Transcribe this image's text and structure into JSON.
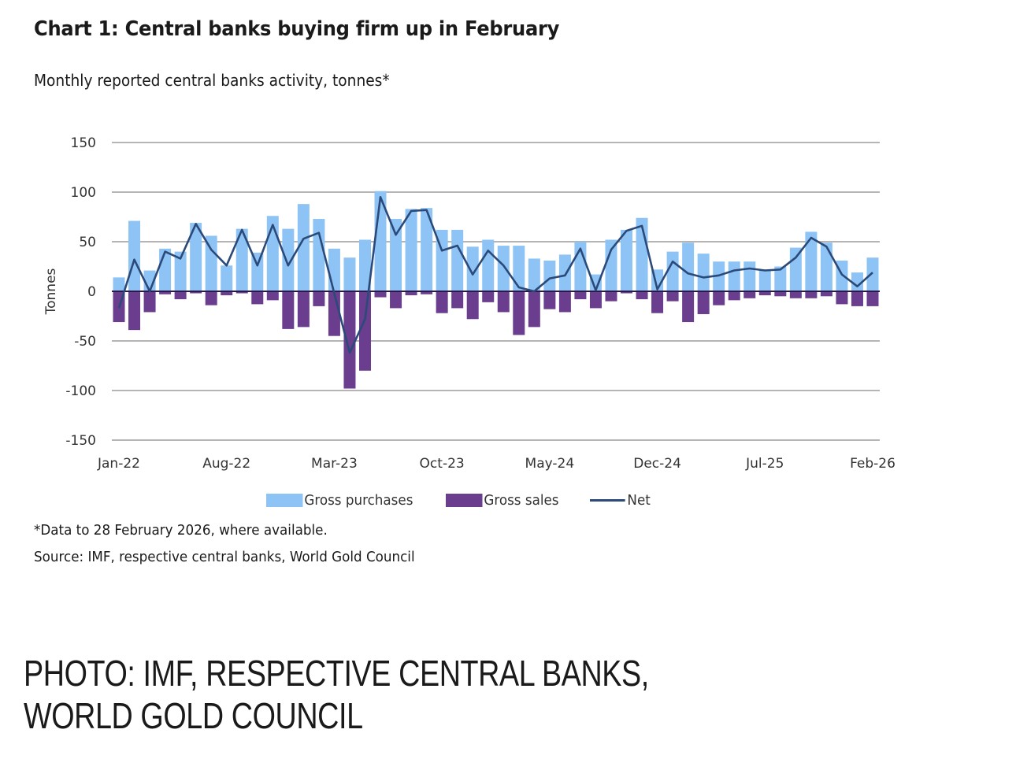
{
  "chart_data": {
    "type": "bar",
    "title": "Chart 1: Central banks buying firm up in February",
    "subtitle": "Monthly reported central banks activity, tonnes*",
    "ylabel": "Tonnes",
    "xlabel": "",
    "ylim": [
      -150,
      150
    ],
    "yticks": [
      "150",
      "100",
      "50",
      "0",
      "-50",
      "-100",
      "-150"
    ],
    "ytick_values": [
      150,
      100,
      50,
      0,
      -50,
      -100,
      -150
    ],
    "xtick_labels": [
      "Jan-22",
      "Aug-22",
      "Mar-23",
      "Oct-23",
      "May-24",
      "Dec-24",
      "Jul-25",
      "Feb-26"
    ],
    "xtick_indices": [
      0,
      7,
      14,
      21,
      28,
      35,
      42,
      49
    ],
    "grid": true,
    "legend_position": "bottom",
    "categories": [
      "Jan-22",
      "Feb-22",
      "Mar-22",
      "Apr-22",
      "May-22",
      "Jun-22",
      "Jul-22",
      "Aug-22",
      "Sep-22",
      "Oct-22",
      "Nov-22",
      "Dec-22",
      "Jan-23",
      "Feb-23",
      "Mar-23",
      "Apr-23",
      "May-23",
      "Jun-23",
      "Jul-23",
      "Aug-23",
      "Sep-23",
      "Oct-23",
      "Nov-23",
      "Dec-23",
      "Jan-24",
      "Feb-24",
      "Mar-24",
      "Apr-24",
      "May-24",
      "Jun-24",
      "Jul-24",
      "Aug-24",
      "Sep-24",
      "Oct-24",
      "Nov-24",
      "Dec-24",
      "Jan-25",
      "Feb-25",
      "Mar-25",
      "Apr-25",
      "May-25",
      "Jun-25",
      "Jul-25",
      "Aug-25",
      "Sep-25",
      "Oct-25",
      "Nov-25",
      "Dec-25",
      "Jan-26",
      "Feb-26"
    ],
    "series": [
      {
        "name": "Gross purchases",
        "kind": "bar",
        "color": "#8ec4f5",
        "values": [
          14,
          71,
          21,
          43,
          40,
          69,
          56,
          26,
          63,
          39,
          76,
          63,
          88,
          73,
          43,
          34,
          52,
          101,
          73,
          83,
          84,
          62,
          62,
          45,
          52,
          46,
          46,
          33,
          31,
          37,
          50,
          17,
          52,
          62,
          74,
          22,
          40,
          49,
          38,
          30,
          30,
          30,
          22,
          25,
          44,
          60,
          49,
          31,
          19,
          34
        ]
      },
      {
        "name": "Gross sales",
        "kind": "bar",
        "color": "#6a3d8f",
        "values": [
          -31,
          -39,
          -21,
          -3,
          -8,
          -2,
          -14,
          -4,
          -2,
          -13,
          -9,
          -38,
          -36,
          -15,
          -45,
          -98,
          -80,
          -6,
          -17,
          -4,
          -3,
          -22,
          -17,
          -28,
          -11,
          -21,
          -44,
          -36,
          -18,
          -21,
          -8,
          -17,
          -10,
          -2,
          -8,
          -22,
          -10,
          -31,
          -23,
          -14,
          -9,
          -7,
          -4,
          -5,
          -7,
          -7,
          -5,
          -13,
          -15,
          -15
        ]
      },
      {
        "name": "Net",
        "kind": "line",
        "color": "#2b4a7a",
        "values": [
          -17,
          32,
          0,
          40,
          33,
          68,
          42,
          26,
          62,
          26,
          67,
          26,
          53,
          59,
          -2,
          -62,
          -28,
          95,
          57,
          81,
          82,
          41,
          46,
          17,
          41,
          26,
          4,
          0,
          13,
          16,
          43,
          1,
          42,
          61,
          66,
          2,
          30,
          18,
          14,
          16,
          21,
          23,
          21,
          22,
          34,
          54,
          45,
          17,
          5,
          19
        ]
      }
    ]
  },
  "footnote": "*Data to 28 February 2026, where available.",
  "source": "Source: IMF, respective central banks, World Gold Council",
  "photo_credit": "PHOTO: IMF, RESPECTIVE CENTRAL BANKS, WORLD GOLD COUNCIL"
}
